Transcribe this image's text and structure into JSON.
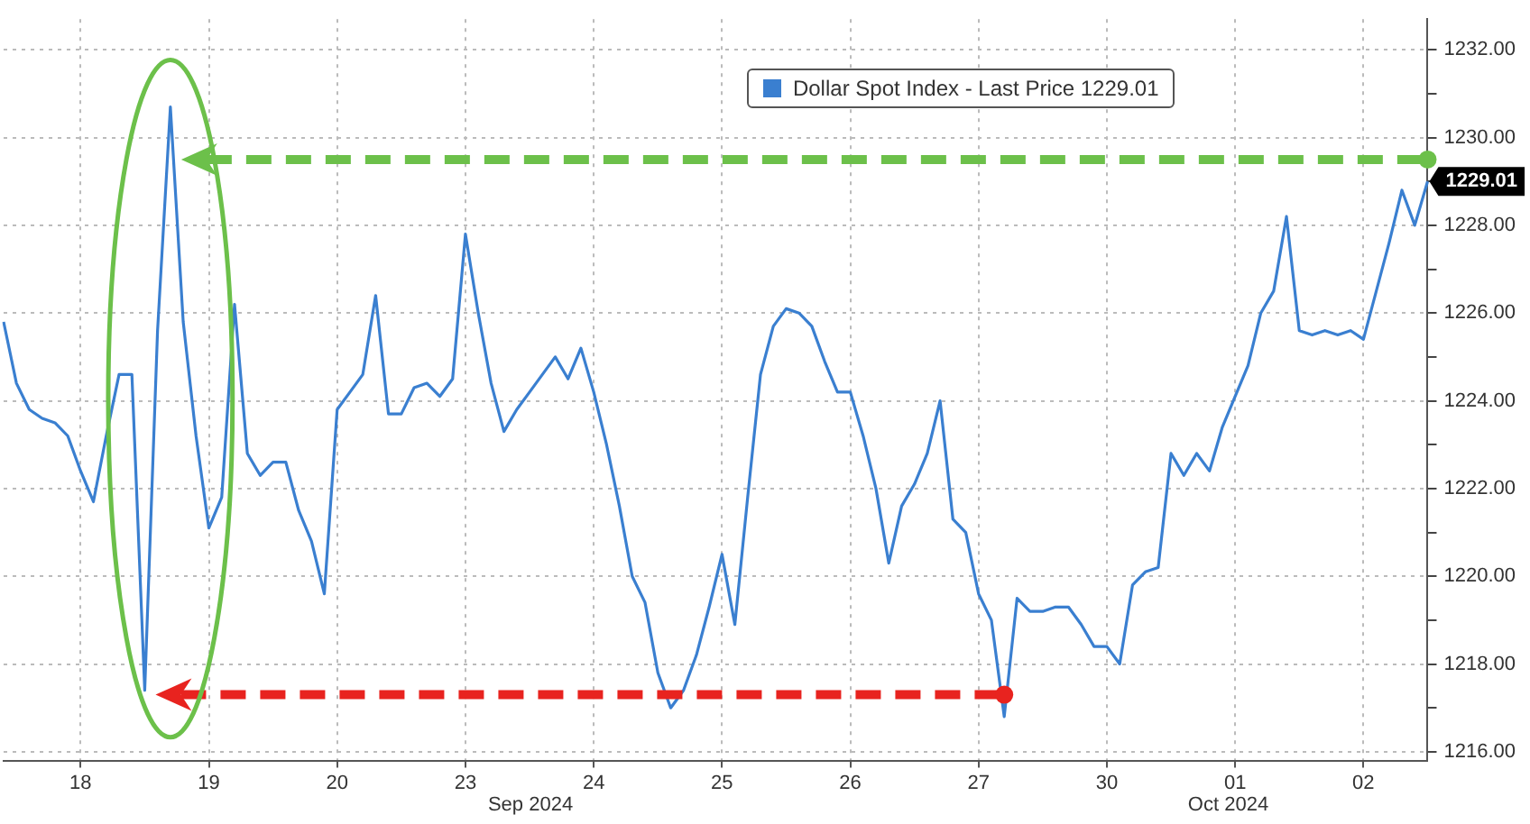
{
  "chart_data": {
    "type": "line",
    "categories": [
      null,
      null,
      null,
      null,
      null,
      null,
      "18",
      null,
      null,
      null,
      null,
      null,
      null,
      null,
      null,
      null,
      "19",
      null,
      null,
      null,
      null,
      null,
      null,
      null,
      null,
      null,
      "20",
      null,
      null,
      null,
      null,
      null,
      null,
      null,
      null,
      null,
      "23",
      null,
      null,
      null,
      null,
      null,
      null,
      null,
      null,
      null,
      "24",
      null,
      null,
      null,
      null,
      null,
      null,
      null,
      null,
      null,
      "25",
      null,
      null,
      null,
      null,
      null,
      null,
      null,
      null,
      null,
      "26",
      null,
      null,
      null,
      null,
      null,
      null,
      null,
      null,
      null,
      "27",
      null,
      null,
      null,
      null,
      null,
      null,
      null,
      null,
      null,
      "30",
      null,
      null,
      null,
      null,
      null,
      null,
      null,
      null,
      null,
      "01",
      null,
      null,
      null,
      null,
      null,
      null,
      null,
      null,
      null,
      "02",
      null,
      null,
      null,
      null,
      null
    ],
    "series": [
      {
        "name": "Dollar Spot Index - Last Price 1229.01",
        "color": "#3a7fd0",
        "values": [
          1225.8,
          1224.4,
          1223.8,
          1223.6,
          1223.5,
          1223.2,
          1222.4,
          1221.7,
          1223.2,
          1224.6,
          1224.6,
          1217.4,
          1225.6,
          1230.7,
          1225.8,
          1223.2,
          1221.1,
          1221.8,
          1226.2,
          1222.8,
          1222.3,
          1222.6,
          1222.6,
          1221.5,
          1220.8,
          1219.6,
          1223.8,
          1224.2,
          1224.6,
          1226.4,
          1223.7,
          1223.7,
          1224.3,
          1224.4,
          1224.1,
          1224.5,
          1227.8,
          1226.0,
          1224.4,
          1223.3,
          1223.8,
          1224.2,
          1224.6,
          1225.0,
          1224.5,
          1225.2,
          1224.2,
          1223.0,
          1221.6,
          1220.0,
          1219.4,
          1217.8,
          1217.0,
          1217.4,
          1218.2,
          1219.3,
          1220.5,
          1218.9,
          1221.8,
          1224.6,
          1225.7,
          1226.1,
          1226.0,
          1225.7,
          1224.9,
          1224.2,
          1224.2,
          1223.2,
          1222.0,
          1220.3,
          1221.6,
          1222.1,
          1222.8,
          1224.0,
          1221.3,
          1221.0,
          1219.6,
          1219.0,
          1216.8,
          1219.5,
          1219.2,
          1219.2,
          1219.3,
          1219.3,
          1218.9,
          1218.4,
          1218.4,
          1218.0,
          1219.8,
          1220.1,
          1220.2,
          1222.8,
          1222.3,
          1222.8,
          1222.4,
          1223.4,
          1224.1,
          1224.8,
          1226.0,
          1226.5,
          1228.2,
          1225.6,
          1225.5,
          1225.6,
          1225.5,
          1225.6,
          1225.4,
          1226.5,
          1227.6,
          1228.8,
          1228.0,
          1229.0
        ]
      }
    ],
    "ylim": [
      1215.8,
      1232.7
    ],
    "yticks": [
      {
        "value": 1216,
        "label": "1216.00"
      },
      {
        "value": 1217,
        "label": null
      },
      {
        "value": 1218,
        "label": "1218.00"
      },
      {
        "value": 1219,
        "label": null
      },
      {
        "value": 1220,
        "label": "1220.00"
      },
      {
        "value": 1221,
        "label": null
      },
      {
        "value": 1222,
        "label": "1222.00"
      },
      {
        "value": 1223,
        "label": null
      },
      {
        "value": 1224,
        "label": "1224.00"
      },
      {
        "value": 1225,
        "label": null
      },
      {
        "value": 1226,
        "label": "1226.00"
      },
      {
        "value": 1227,
        "label": null
      },
      {
        "value": 1228,
        "label": "1228.00"
      },
      {
        "value": 1229,
        "label": null
      },
      {
        "value": 1230,
        "label": "1230.00"
      },
      {
        "value": 1231,
        "label": null
      },
      {
        "value": 1232,
        "label": "1232.00"
      }
    ],
    "annotations": [
      "Sep 2024",
      "Oct 2024",
      "1229.01"
    ],
    "ref_lines": [
      {
        "axis": "y",
        "value": 1229.5,
        "color": "#6cc04a",
        "line_style": "dashed"
      },
      {
        "axis": "y",
        "value": 1217.3,
        "color": "#e8231f",
        "line_style": "dashed"
      }
    ],
    "grid": true,
    "legend": "top right",
    "marker": "none",
    "line_style": "solid"
  }
}
